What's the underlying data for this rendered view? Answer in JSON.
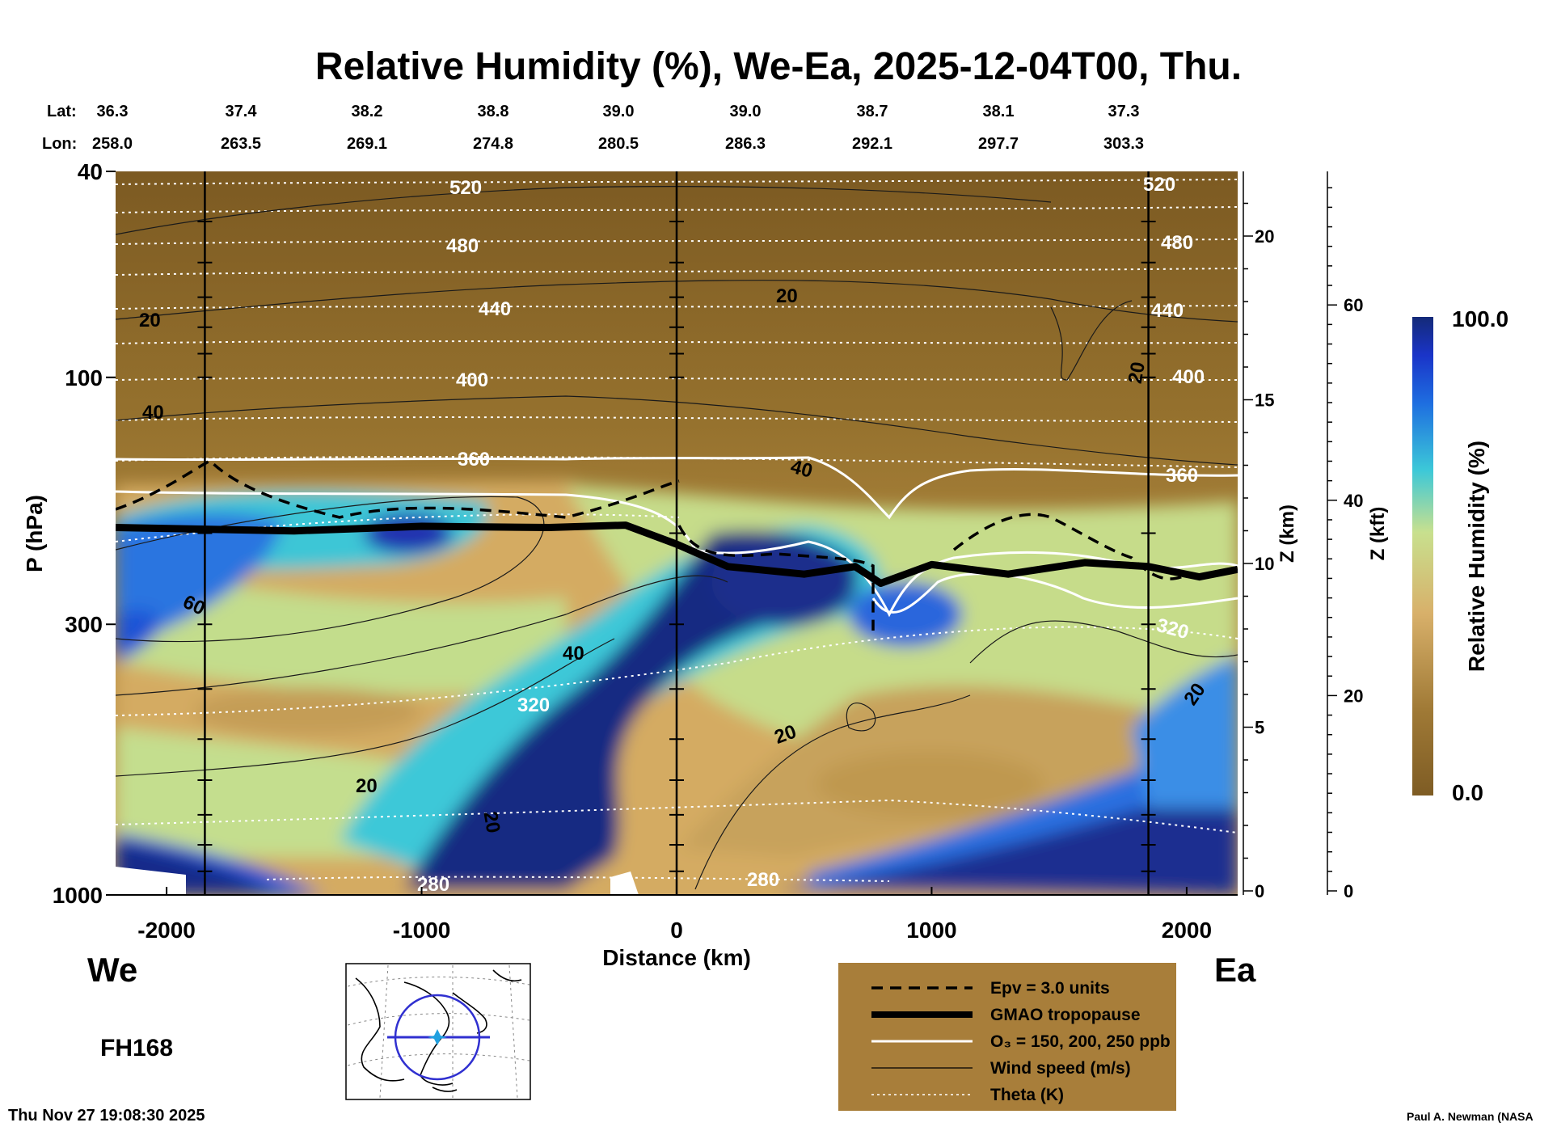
{
  "chart_data": {
    "type": "heatmap",
    "title": "Relative Humidity (%), We-Ea, 2025-12-04T00, Thu.",
    "xlabel": "Distance (km)",
    "ylabel": "P (hPa)",
    "xlim": [
      -2200,
      2200
    ],
    "ylim": [
      1000,
      40
    ],
    "x_ticks": [
      -2000,
      -1000,
      0,
      1000,
      2000
    ],
    "x_tick_labels": [
      "-2000",
      "-1000",
      "0",
      "1000",
      "2000"
    ],
    "y_ticks": [
      40,
      100,
      300,
      1000
    ],
    "y_tick_labels": [
      "40",
      "100",
      "300",
      "1000"
    ],
    "z_km_axis": {
      "label": "Z (km)",
      "ticks": [
        0,
        5,
        10,
        15,
        20
      ],
      "labels": [
        "0",
        "5",
        "10",
        "15",
        "20"
      ]
    },
    "z_kft_axis": {
      "label": "Z (kft)",
      "ticks": [
        0,
        20,
        40,
        60
      ],
      "labels": [
        "0",
        "20",
        "40",
        "60"
      ]
    },
    "lat_label": "Lat:",
    "lon_label": "Lon:",
    "lat": [
      "36.3",
      "37.4",
      "38.2",
      "38.8",
      "39.0",
      "39.0",
      "38.7",
      "38.1",
      "37.3"
    ],
    "lon": [
      "258.0",
      "263.5",
      "269.1",
      "274.8",
      "280.5",
      "286.3",
      "292.1",
      "297.7",
      "303.3"
    ],
    "vertical_markers_km": [
      -1850,
      0,
      1850
    ],
    "colorbar": {
      "label": "Relative Humidity (%)",
      "min_label": "0.0",
      "max_label": "100.0",
      "min": 0,
      "max": 100
    },
    "theta_contours": [
      {
        "value": 280,
        "label": "280"
      },
      {
        "value": 320,
        "label": "320"
      },
      {
        "value": 360,
        "label": "360"
      },
      {
        "value": 400,
        "label": "400"
      },
      {
        "value": 440,
        "label": "440"
      },
      {
        "value": 480,
        "label": "480"
      },
      {
        "value": 520,
        "label": "520"
      }
    ],
    "wind_contour_labels": [
      "20",
      "40",
      "60"
    ],
    "tropopause_hpa": [
      {
        "x": -2200,
        "p": 195
      },
      {
        "x": -1500,
        "p": 198
      },
      {
        "x": -1000,
        "p": 194
      },
      {
        "x": -500,
        "p": 195
      },
      {
        "x": -200,
        "p": 193
      },
      {
        "x": 0,
        "p": 210
      },
      {
        "x": 200,
        "p": 232
      },
      {
        "x": 500,
        "p": 240
      },
      {
        "x": 700,
        "p": 232
      },
      {
        "x": 800,
        "p": 250
      },
      {
        "x": 1000,
        "p": 230
      },
      {
        "x": 1300,
        "p": 240
      },
      {
        "x": 1600,
        "p": 228
      },
      {
        "x": 1850,
        "p": 232
      },
      {
        "x": 2050,
        "p": 243
      },
      {
        "x": 2200,
        "p": 235
      }
    ]
  },
  "legend": {
    "items": [
      {
        "label": "Epv = 3.0 units"
      },
      {
        "label": "GMAO tropopause"
      },
      {
        "label": "O₃ = 150, 200, 250 ppb"
      },
      {
        "label": "Wind speed (m/s)"
      },
      {
        "label": "Theta (K)"
      }
    ]
  },
  "direction_west": "We",
  "direction_east": "Ea",
  "forecast_hour": "FH168",
  "timestamp": "Thu Nov 27 19:08:30 2025",
  "credit": "Paul A. Newman (NASA",
  "colors": {
    "rh_dry": "#7e5c24",
    "rh_mid": "#c8a058",
    "rh_green": "#bde08a",
    "rh_cyan": "#3cc8d8",
    "rh_blue": "#1e4ed8",
    "rh_wet": "#142a78",
    "legend_bg": "#a87e3a"
  }
}
